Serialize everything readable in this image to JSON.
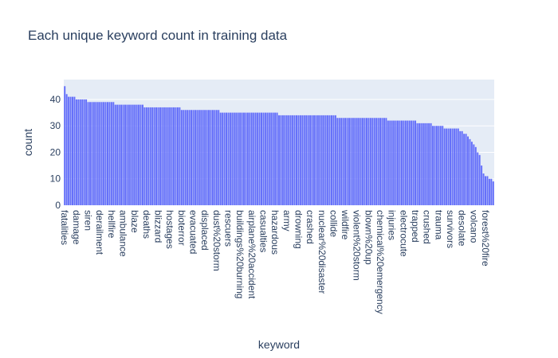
{
  "chart_data": {
    "type": "bar",
    "title": "Each unique keyword count in training data",
    "x_label": "keyword",
    "y_label": "count",
    "color": "#636efa",
    "grid": true,
    "ylim": [
      0,
      47.5
    ],
    "yticks": [
      0,
      10,
      20,
      30,
      40
    ],
    "categories": [
      "fatalities",
      null,
      null,
      null,
      null,
      null,
      "damage",
      null,
      null,
      null,
      null,
      null,
      "siren",
      null,
      null,
      null,
      null,
      null,
      "derailment",
      null,
      null,
      null,
      null,
      null,
      "hellfire",
      null,
      null,
      null,
      null,
      null,
      "ambulance",
      null,
      null,
      null,
      null,
      null,
      "blaze",
      null,
      null,
      null,
      null,
      null,
      "deaths",
      null,
      null,
      null,
      null,
      null,
      "blizzard",
      null,
      null,
      null,
      null,
      null,
      "hostages",
      null,
      null,
      null,
      null,
      null,
      "bioterror",
      null,
      null,
      null,
      null,
      null,
      "evacuated",
      null,
      null,
      null,
      null,
      null,
      "displaced",
      null,
      null,
      null,
      null,
      null,
      "dust%20storm",
      null,
      null,
      null,
      null,
      null,
      "rescuers",
      null,
      null,
      null,
      null,
      null,
      "buildings%20burning",
      null,
      null,
      null,
      null,
      null,
      "airplane%20accident",
      null,
      null,
      null,
      null,
      null,
      "casualties",
      null,
      null,
      null,
      null,
      null,
      "hazardous",
      null,
      null,
      null,
      null,
      null,
      "army",
      null,
      null,
      null,
      null,
      null,
      "drowning",
      null,
      null,
      null,
      null,
      null,
      "crashed",
      null,
      null,
      null,
      null,
      null,
      "nuclear%20disaster",
      null,
      null,
      null,
      null,
      null,
      "collide",
      null,
      null,
      null,
      null,
      null,
      "wildfire",
      null,
      null,
      null,
      null,
      null,
      "violent%20storm",
      null,
      null,
      null,
      null,
      null,
      "blown%20up",
      null,
      null,
      null,
      null,
      null,
      "chemical%20emergency",
      null,
      null,
      null,
      null,
      null,
      "injuries",
      null,
      null,
      null,
      null,
      null,
      "electrocute",
      null,
      null,
      null,
      null,
      null,
      "trapped",
      null,
      null,
      null,
      null,
      null,
      "crushed",
      null,
      null,
      null,
      null,
      null,
      "trauma",
      null,
      null,
      null,
      null,
      null,
      "survivors",
      null,
      null,
      null,
      null,
      null,
      "desolate",
      null,
      null,
      null,
      null,
      null,
      "volcano",
      null,
      null,
      null,
      null,
      null,
      "forest%20fire",
      null,
      null,
      null,
      null
    ],
    "values": [
      45,
      42,
      41,
      41,
      41,
      41,
      40,
      40,
      40,
      40,
      40,
      40,
      39,
      39,
      39,
      39,
      39,
      39,
      39,
      39,
      39,
      39,
      39,
      39,
      39,
      39,
      38,
      38,
      38,
      38,
      38,
      38,
      38,
      38,
      38,
      38,
      38,
      38,
      38,
      38,
      38,
      37,
      37,
      37,
      37,
      37,
      37,
      37,
      37,
      37,
      37,
      37,
      37,
      37,
      37,
      37,
      37,
      37,
      37,
      37,
      36,
      36,
      36,
      36,
      36,
      36,
      36,
      36,
      36,
      36,
      36,
      36,
      36,
      36,
      36,
      36,
      36,
      36,
      36,
      36,
      35,
      35,
      35,
      35,
      35,
      35,
      35,
      35,
      35,
      35,
      35,
      35,
      35,
      35,
      35,
      35,
      35,
      35,
      35,
      35,
      35,
      35,
      35,
      35,
      35,
      35,
      35,
      35,
      35,
      35,
      34,
      34,
      34,
      34,
      34,
      34,
      34,
      34,
      34,
      34,
      34,
      34,
      34,
      34,
      34,
      34,
      34,
      34,
      34,
      34,
      34,
      34,
      34,
      34,
      34,
      34,
      34,
      34,
      34,
      34,
      33,
      33,
      33,
      33,
      33,
      33,
      33,
      33,
      33,
      33,
      33,
      33,
      33,
      33,
      33,
      33,
      33,
      33,
      33,
      33,
      33,
      33,
      33,
      33,
      33,
      33,
      32,
      32,
      32,
      32,
      32,
      32,
      32,
      32,
      32,
      32,
      32,
      32,
      32,
      32,
      32,
      31,
      31,
      31,
      31,
      31,
      31,
      31,
      31,
      30,
      30,
      30,
      30,
      30,
      30,
      29,
      29,
      29,
      29,
      29,
      29,
      29,
      29,
      28,
      28,
      27,
      27,
      26,
      25,
      24,
      23,
      22,
      20,
      19,
      15,
      12,
      11,
      11,
      10,
      10,
      9
    ]
  }
}
